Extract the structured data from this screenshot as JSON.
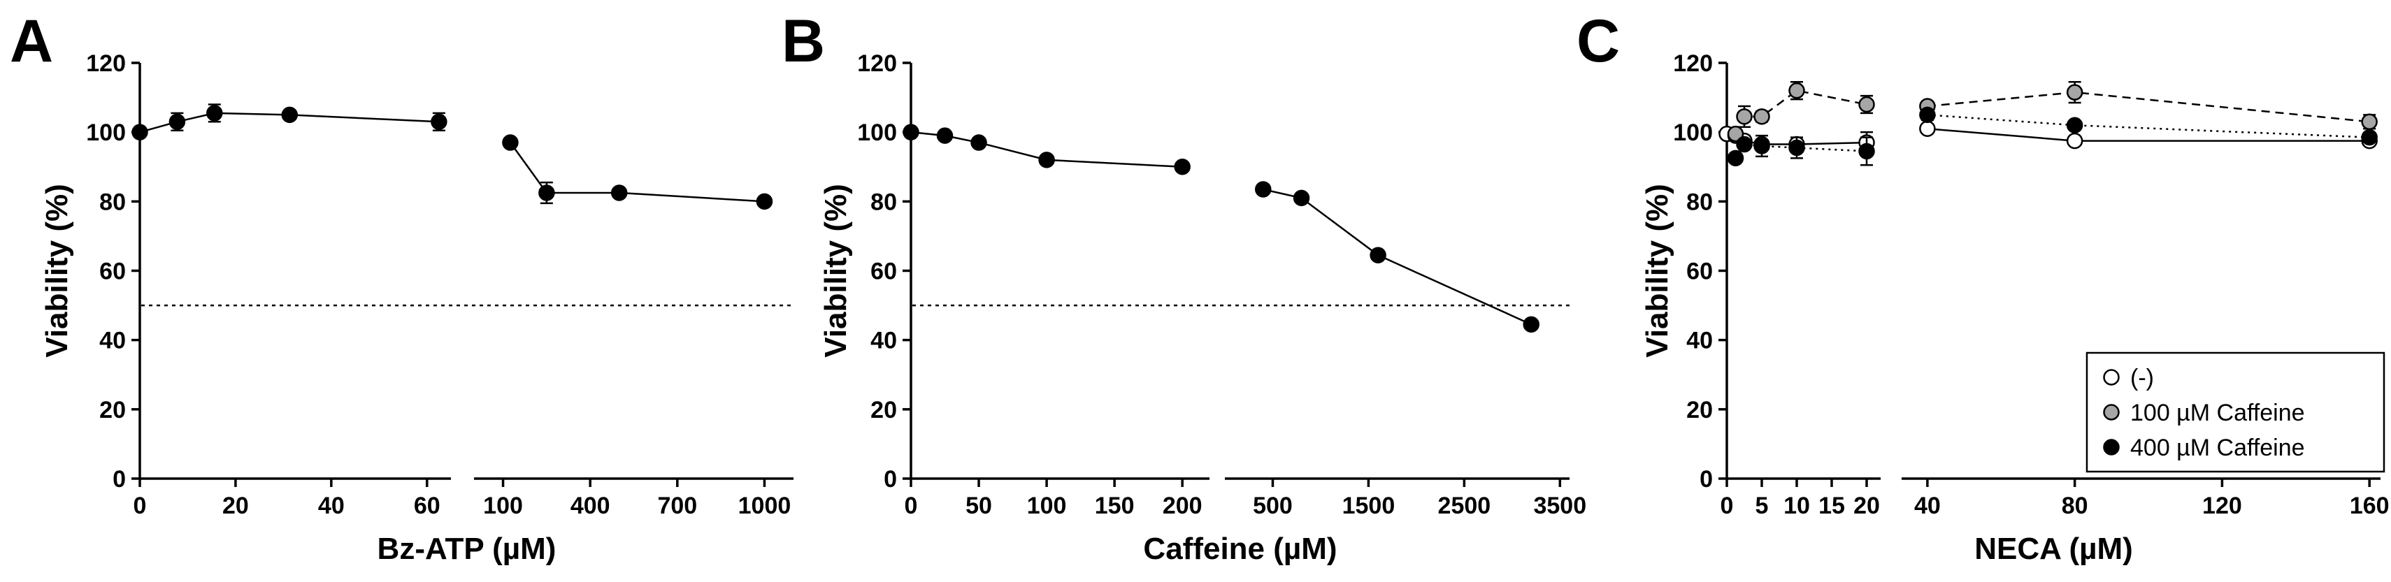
{
  "chart_data": [
    {
      "panel": "A",
      "type": "line",
      "xlabel": "Bz-ATP (µM)",
      "ylabel": "Viability (%)",
      "ylim": [
        0,
        120
      ],
      "yticks": [
        0,
        20,
        40,
        60,
        80,
        100,
        120
      ],
      "reference_line": 50,
      "segments": [
        {
          "xlim": [
            0,
            65
          ],
          "xticks": [
            "0",
            "20",
            "40",
            "60"
          ],
          "xtick_values": [
            0,
            20,
            40,
            60
          ],
          "points": [
            {
              "x": 0,
              "y": 100,
              "err": 0
            },
            {
              "x": 7.8,
              "y": 103,
              "err": 2.5
            },
            {
              "x": 15.6,
              "y": 105.5,
              "err": 2.5
            },
            {
              "x": 31.3,
              "y": 105,
              "err": 1
            },
            {
              "x": 62.5,
              "y": 103,
              "err": 2.5
            }
          ]
        },
        {
          "xlim": [
            0,
            1100
          ],
          "xticks": [
            "100",
            "400",
            "700",
            "1000"
          ],
          "xtick_values": [
            100,
            400,
            700,
            1000
          ],
          "points": [
            {
              "x": 125,
              "y": 97,
              "err": 1
            },
            {
              "x": 250,
              "y": 82.5,
              "err": 3
            },
            {
              "x": 500,
              "y": 82.5,
              "err": 1
            },
            {
              "x": 1000,
              "y": 80,
              "err": 1
            }
          ]
        }
      ]
    },
    {
      "panel": "B",
      "type": "line",
      "xlabel": "Caffeine (µM)",
      "ylabel": "Viability (%)",
      "ylim": [
        0,
        120
      ],
      "yticks": [
        0,
        20,
        40,
        60,
        80,
        100,
        120
      ],
      "reference_line": 50,
      "segments": [
        {
          "xlim": [
            0,
            220
          ],
          "xticks": [
            "0",
            "50",
            "100",
            "150",
            "200"
          ],
          "xtick_values": [
            0,
            50,
            100,
            150,
            200
          ],
          "points": [
            {
              "x": 0,
              "y": 100,
              "err": 0
            },
            {
              "x": 25,
              "y": 99,
              "err": 1
            },
            {
              "x": 50,
              "y": 97,
              "err": 1
            },
            {
              "x": 100,
              "y": 92,
              "err": 1
            },
            {
              "x": 200,
              "y": 90,
              "err": 1
            }
          ]
        },
        {
          "xlim": [
            0,
            3600
          ],
          "xticks": [
            "500",
            "1500",
            "2500",
            "3500"
          ],
          "xtick_values": [
            500,
            1500,
            2500,
            3500
          ],
          "points": [
            {
              "x": 400,
              "y": 83.5,
              "err": 1
            },
            {
              "x": 800,
              "y": 81,
              "err": 1
            },
            {
              "x": 1600,
              "y": 64.5,
              "err": 1
            },
            {
              "x": 3200,
              "y": 44.5,
              "err": 1
            }
          ]
        }
      ]
    },
    {
      "panel": "C",
      "type": "line",
      "xlabel": "NECA (µM)",
      "ylabel": "Viability (%)",
      "ylim": [
        0,
        120
      ],
      "yticks": [
        0,
        20,
        40,
        60,
        80,
        100,
        120
      ],
      "legend_position": "right",
      "segments": [
        {
          "xlim": [
            0,
            22
          ],
          "xticks": [
            "0",
            "5",
            "10",
            "15",
            "20"
          ],
          "xtick_values": [
            0,
            5,
            10,
            15,
            20
          ]
        },
        {
          "xlim": [
            33,
            163
          ],
          "xticks": [
            "40",
            "80",
            "120",
            "160"
          ],
          "xtick_values": [
            40,
            80,
            120,
            160
          ]
        }
      ],
      "series": [
        {
          "name": "(-)",
          "fill": "#ffffff",
          "dash": "",
          "points": [
            {
              "seg": 0,
              "x": 0,
              "y": 99.5,
              "err": 0
            },
            {
              "seg": 0,
              "x": 1.25,
              "y": 99,
              "err": 1
            },
            {
              "seg": 0,
              "x": 2.5,
              "y": 97.5,
              "err": 1.5
            },
            {
              "seg": 0,
              "x": 5,
              "y": 96.5,
              "err": 1
            },
            {
              "seg": 0,
              "x": 10,
              "y": 96.5,
              "err": 1
            },
            {
              "seg": 0,
              "x": 20,
              "y": 97,
              "err": 3
            },
            {
              "seg": 1,
              "x": 40,
              "y": 101,
              "err": 1
            },
            {
              "seg": 1,
              "x": 80,
              "y": 97.5,
              "err": 1
            },
            {
              "seg": 1,
              "x": 160,
              "y": 97.5,
              "err": 1
            }
          ]
        },
        {
          "name": "100 µM Caffeine",
          "fill": "#a6a6a6",
          "dash": "12,8",
          "points": [
            {
              "seg": 0,
              "x": 1.25,
              "y": 99.5,
              "err": 1
            },
            {
              "seg": 0,
              "x": 2.5,
              "y": 104.5,
              "err": 3
            },
            {
              "seg": 0,
              "x": 5,
              "y": 104.5,
              "err": 1.5
            },
            {
              "seg": 0,
              "x": 10,
              "y": 112,
              "err": 2.5
            },
            {
              "seg": 0,
              "x": 20,
              "y": 108,
              "err": 2.5
            },
            {
              "seg": 1,
              "x": 40,
              "y": 107.5,
              "err": 1
            },
            {
              "seg": 1,
              "x": 80,
              "y": 111.5,
              "err": 3
            },
            {
              "seg": 1,
              "x": 160,
              "y": 103,
              "err": 2
            }
          ]
        },
        {
          "name": "400 µM Caffeine",
          "fill": "#000000",
          "dash": "3,6",
          "points": [
            {
              "seg": 0,
              "x": 1.25,
              "y": 92.5,
              "err": 1
            },
            {
              "seg": 0,
              "x": 2.5,
              "y": 96.5,
              "err": 1
            },
            {
              "seg": 0,
              "x": 5,
              "y": 96,
              "err": 3
            },
            {
              "seg": 0,
              "x": 10,
              "y": 95.5,
              "err": 3
            },
            {
              "seg": 0,
              "x": 20,
              "y": 94.5,
              "err": 4
            },
            {
              "seg": 1,
              "x": 40,
              "y": 105,
              "err": 1.5
            },
            {
              "seg": 1,
              "x": 80,
              "y": 102,
              "err": 1
            },
            {
              "seg": 1,
              "x": 160,
              "y": 98.5,
              "err": 1
            }
          ]
        }
      ]
    }
  ]
}
